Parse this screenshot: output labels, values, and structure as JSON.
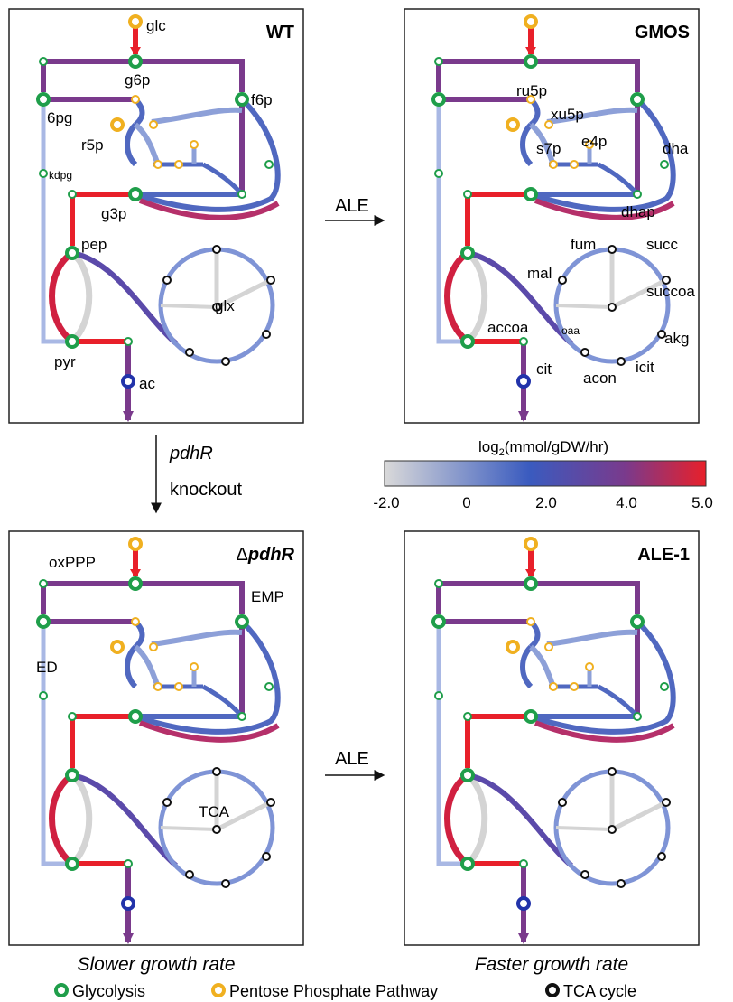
{
  "panels": {
    "wt": {
      "title": "WT"
    },
    "gmos": {
      "title": "GMOS"
    },
    "dpdhr": {
      "title_delta": "Δ",
      "title_gene": "pdhR"
    },
    "ale1": {
      "title": "ALE-1"
    }
  },
  "metabolites": {
    "glc": "glc",
    "g6p": "g6p",
    "f6p": "f6p",
    "6pg": "6pg",
    "r5p": "r5p",
    "kdpg": "kdpg",
    "g3p": "g3p",
    "pep": "pep",
    "pyr": "pyr",
    "ac": "ac",
    "glx": "glx",
    "ru5p": "ru5p",
    "xu5p": "xu5p",
    "s7p": "s7p",
    "e4p": "e4p",
    "dha": "dha",
    "dhap": "dhap",
    "fum": "fum",
    "succ": "succ",
    "mal": "mal",
    "succoa": "succoa",
    "oaa": "oaa",
    "akg": "akg",
    "accoa": "accoa",
    "cit": "cit",
    "icit": "icit",
    "acon": "acon"
  },
  "pathway_labels": {
    "oxPPP": "oxPPP",
    "EMP": "EMP",
    "ED": "ED",
    "TCA": "TCA"
  },
  "transitions": {
    "top_ale": "ALE",
    "bottom_ale": "ALE",
    "knockout_gene": "pdhR",
    "knockout_word": "knockout"
  },
  "colorbar": {
    "title_prefix": "log",
    "title_sub": "2",
    "title_suffix": "(mmol/gDW/hr)",
    "ticks": [
      "-2.0",
      "0",
      "2.0",
      "4.0",
      "5.0"
    ],
    "stops": [
      "#d9d9d9",
      "#3a5bbf",
      "#7a3a8c",
      "#e8202a"
    ]
  },
  "captions": {
    "left": "Slower growth rate",
    "right": "Faster growth rate"
  },
  "legend": [
    {
      "label": "Glycolysis",
      "color": "#1f9e4a"
    },
    {
      "label": "Pentose Phosphate Pathway",
      "color": "#f0b020"
    },
    {
      "label": "TCA cycle",
      "color": "#111111"
    }
  ]
}
